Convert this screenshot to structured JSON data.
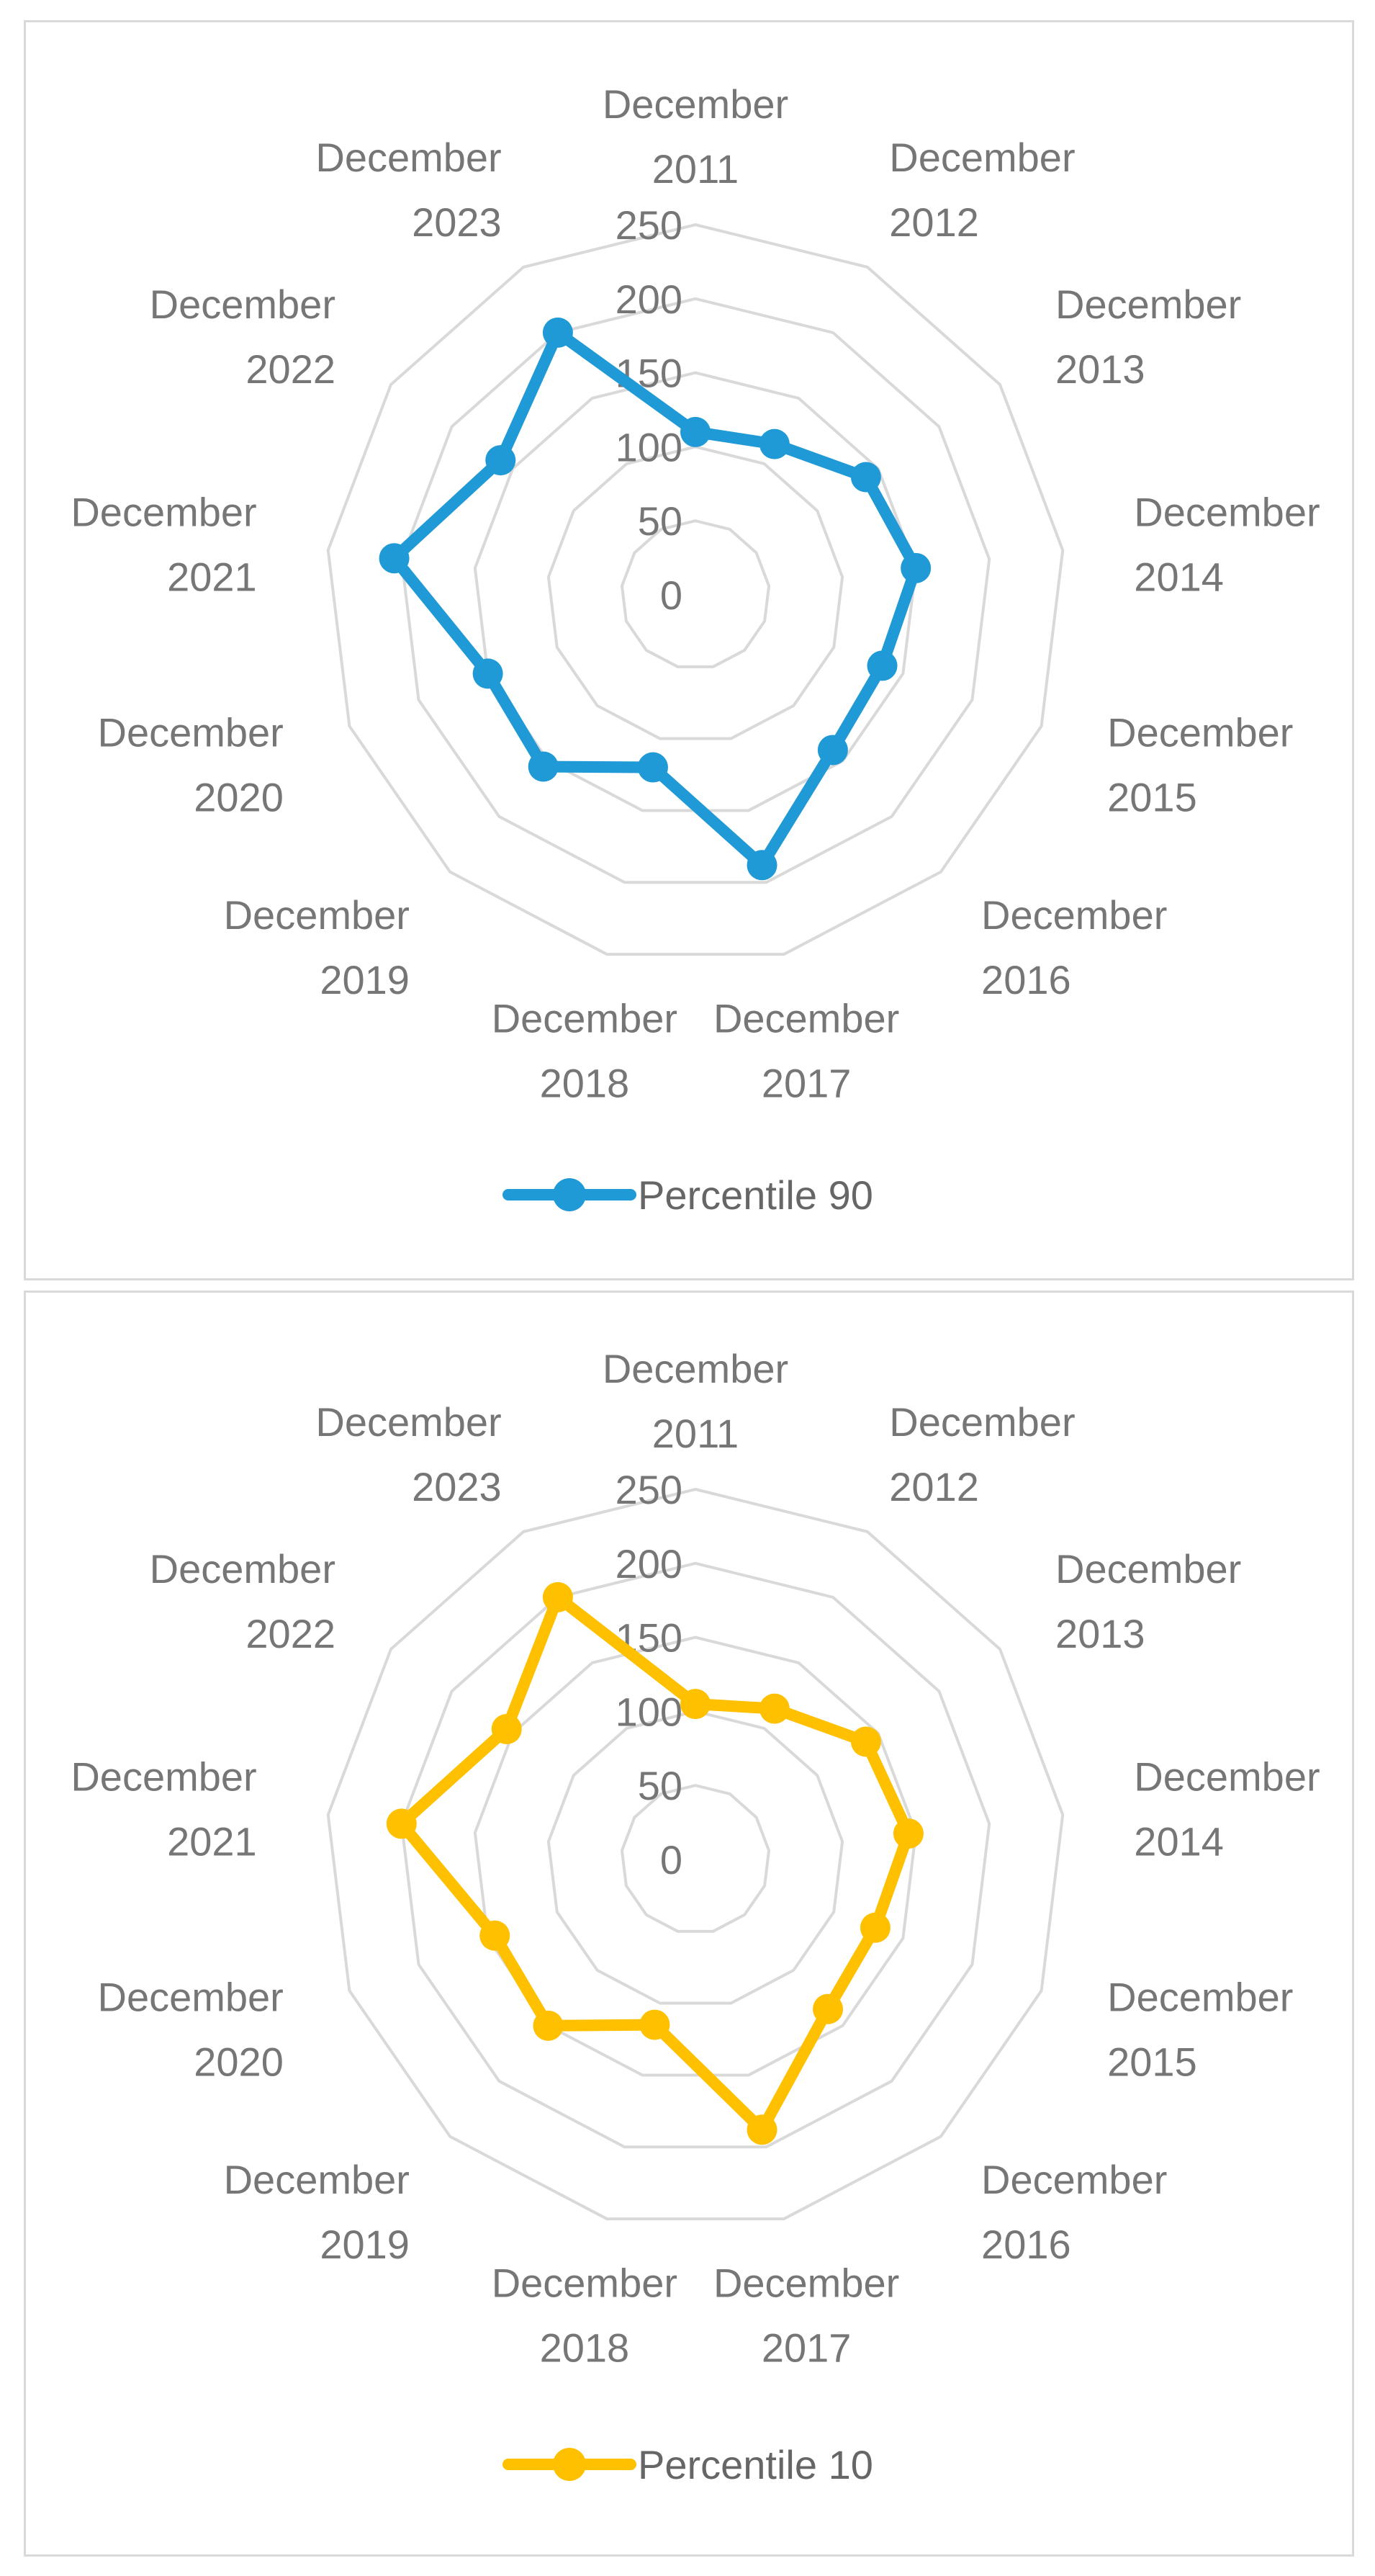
{
  "chart_data": [
    {
      "type": "radar",
      "categories": [
        "December 2011",
        "December 2012",
        "December 2013",
        "December 2014",
        "December 2015",
        "December 2016",
        "December 2017",
        "December 2018",
        "December 2019",
        "December 2020",
        "December 2021",
        "December 2022",
        "December 2023"
      ],
      "category_lines": [
        [
          "December",
          "2011"
        ],
        [
          "December",
          "2012"
        ],
        [
          "December",
          "2013"
        ],
        [
          "December",
          "2014"
        ],
        [
          "December",
          "2015"
        ],
        [
          "December",
          "2016"
        ],
        [
          "December",
          "2017"
        ],
        [
          "December",
          "2018"
        ],
        [
          "December",
          "2019"
        ],
        [
          "December",
          "2020"
        ],
        [
          "December",
          "2021"
        ],
        [
          "December",
          "2022"
        ],
        [
          "December",
          "2023"
        ]
      ],
      "radial_ticks": [
        "0",
        "50",
        "100",
        "150",
        "200",
        "250"
      ],
      "rmax": 250,
      "grid": true,
      "legend_position": "bottom",
      "series": [
        {
          "name": "Percentile 90",
          "color": "#1f9ad6",
          "values": [
            110,
            115,
            140,
            150,
            135,
            140,
            188,
            120,
            155,
            150,
            205,
            160,
            200
          ]
        }
      ]
    },
    {
      "type": "radar",
      "categories": [
        "December 2011",
        "December 2012",
        "December 2013",
        "December 2014",
        "December 2015",
        "December 2016",
        "December 2017",
        "December 2018",
        "December 2019",
        "December 2020",
        "December 2021",
        "December 2022",
        "December 2023"
      ],
      "category_lines": [
        [
          "December",
          "2011"
        ],
        [
          "December",
          "2012"
        ],
        [
          "December",
          "2013"
        ],
        [
          "December",
          "2014"
        ],
        [
          "December",
          "2015"
        ],
        [
          "December",
          "2016"
        ],
        [
          "December",
          "2017"
        ],
        [
          "December",
          "2018"
        ],
        [
          "December",
          "2019"
        ],
        [
          "December",
          "2020"
        ],
        [
          "December",
          "2021"
        ],
        [
          "December",
          "2022"
        ],
        [
          "December",
          "2023"
        ]
      ],
      "radial_ticks": [
        "0",
        "50",
        "100",
        "150",
        "200",
        "250"
      ],
      "rmax": 250,
      "grid": true,
      "legend_position": "bottom",
      "series": [
        {
          "name": "Percentile 10",
          "color": "#ffc000",
          "values": [
            105,
            115,
            140,
            145,
            130,
            135,
            188,
            115,
            150,
            145,
            200,
            155,
            200
          ]
        }
      ]
    }
  ]
}
